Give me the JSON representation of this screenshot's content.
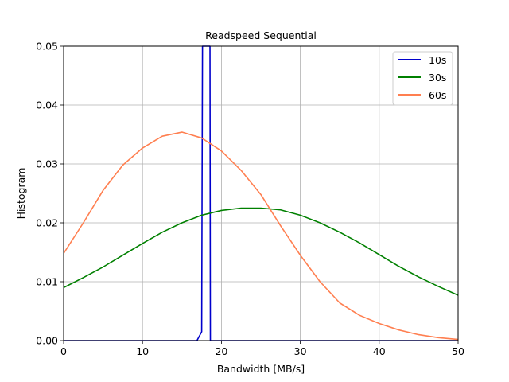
{
  "chart_data": {
    "type": "line",
    "title": "Readspeed Sequential",
    "xlabel": "Bandwidth [MB/s]",
    "ylabel": "Histogram",
    "xlim": [
      0,
      50
    ],
    "ylim": [
      0,
      0.05
    ],
    "xticks": [
      "0",
      "10",
      "20",
      "30",
      "40",
      "50"
    ],
    "yticks": [
      "0.00",
      "0.01",
      "0.02",
      "0.03",
      "0.04",
      "0.05"
    ],
    "grid": true,
    "legend_position": "top-right",
    "series": [
      {
        "name": "10s",
        "color": "#0000cc",
        "x": [
          0,
          16.9,
          17.5,
          17.6,
          17.65,
          18.55,
          18.6,
          50
        ],
        "y": [
          0,
          0,
          0.0015,
          0.05,
          0.05,
          0.05,
          0,
          0
        ]
      },
      {
        "name": "30s",
        "color": "#008000",
        "x": [
          0,
          2.5,
          5,
          7.5,
          10,
          12.5,
          15,
          17.5,
          20,
          22.5,
          25,
          27.5,
          30,
          32.5,
          35,
          37.5,
          40,
          42.5,
          45,
          47.5,
          50
        ],
        "y": [
          0.009,
          0.0107,
          0.0125,
          0.0145,
          0.0165,
          0.0184,
          0.02,
          0.0213,
          0.0221,
          0.0225,
          0.0225,
          0.0222,
          0.0213,
          0.02,
          0.0184,
          0.0166,
          0.0146,
          0.0126,
          0.0108,
          0.0092,
          0.0077
        ]
      },
      {
        "name": "60s",
        "color": "#ff7f50",
        "x": [
          0,
          2.5,
          5,
          7.5,
          10,
          12.5,
          15,
          17.5,
          20,
          22.5,
          25,
          27.5,
          30,
          32.5,
          35,
          37.5,
          40,
          42.5,
          45,
          47.5,
          50
        ],
        "y": [
          0.0148,
          0.02,
          0.0255,
          0.0298,
          0.0327,
          0.0347,
          0.0354,
          0.0344,
          0.0322,
          0.0289,
          0.0248,
          0.0195,
          0.0145,
          0.01,
          0.0064,
          0.0043,
          0.0029,
          0.0018,
          0.001,
          0.0005,
          0.0002
        ]
      }
    ]
  }
}
